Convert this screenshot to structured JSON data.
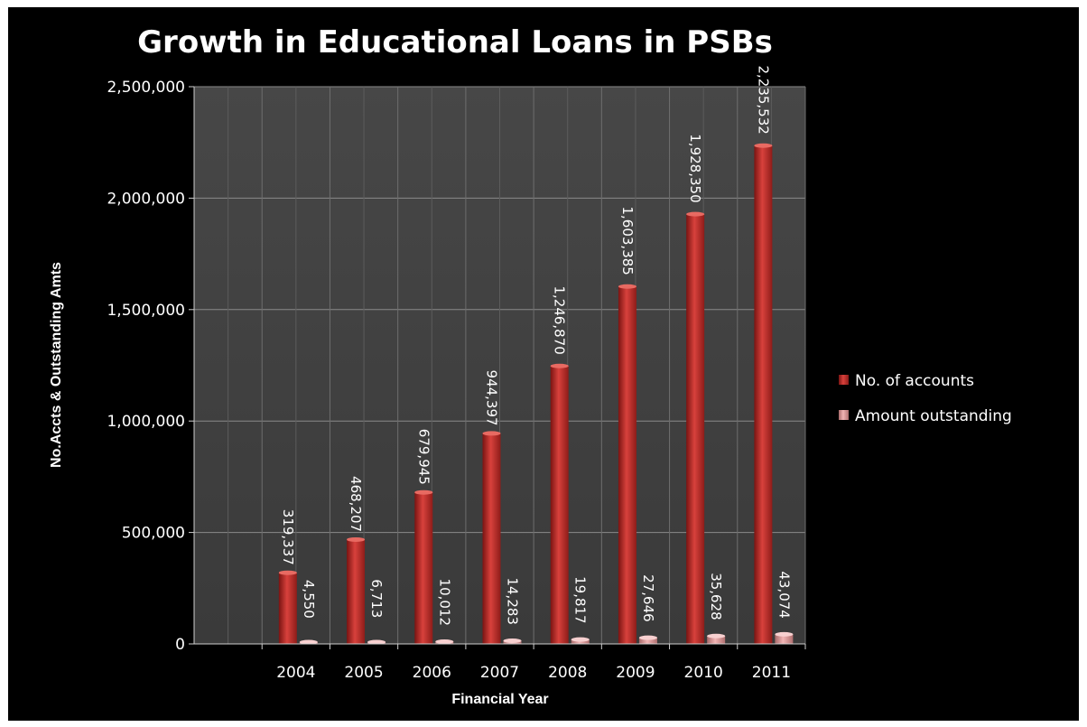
{
  "chart_data": {
    "type": "bar",
    "title": "Growth in Educational Loans in PSBs",
    "xlabel": "Financial Year",
    "ylabel": "No.Accts & Outstanding Amts",
    "categories": [
      "",
      "2004",
      "2005",
      "2006",
      "2007",
      "2008",
      "2009",
      "2010",
      "2011"
    ],
    "series": [
      {
        "name": "No. of accounts",
        "color": "#c0302d",
        "values": [
          null,
          319337,
          468207,
          679945,
          944397,
          1246870,
          1603385,
          1928350,
          2235532
        ],
        "labels": [
          "",
          "319,337",
          "468,207",
          "679,945",
          "944,397",
          "1,246,870",
          "1,603,385",
          "1,928,350",
          "2,235,532"
        ]
      },
      {
        "name": "Amount outstanding",
        "color": "#e6a0a0",
        "values": [
          null,
          4550,
          6713,
          10012,
          14283,
          19817,
          27646,
          35628,
          43074
        ],
        "labels": [
          "",
          "4,550",
          "6,713",
          "10,012",
          "14,283",
          "19,817",
          "27,646",
          "35,628",
          "43,074"
        ]
      }
    ],
    "ylim": [
      0,
      2500000
    ],
    "yticks": [
      0,
      500000,
      1000000,
      1500000,
      2000000,
      2500000
    ],
    "ytick_labels": [
      "0",
      "500,000",
      "1,000,000",
      "1,500,000",
      "2,000,000",
      "2,500,000"
    ],
    "grid": "vertical and horizontal",
    "legend": "right"
  }
}
